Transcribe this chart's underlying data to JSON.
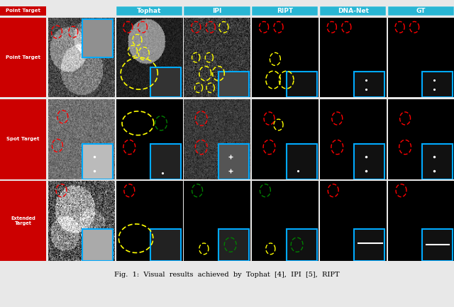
{
  "title": "Fig. 1: Visual results achieved by Tophat [4], IPI [5], RIPT",
  "col_headers": [
    "Tophat",
    "IPI",
    "RIPT",
    "DNA-Net",
    "GT"
  ],
  "row_labels": [
    "Point Target",
    "Spot Target",
    "Extended\nTarget"
  ],
  "row_label_bg": "#cc0000",
  "col_header_bg": "#29b6d4",
  "col_header_text": "#ffffff",
  "row_label_text": "#ffffff",
  "fig_width": 6.4,
  "fig_height": 4.33,
  "caption": "Fig.  1:  Visual  results  achieved  by  Tophat  [4],  IPI  [5],  RIPT",
  "background": "#000000"
}
